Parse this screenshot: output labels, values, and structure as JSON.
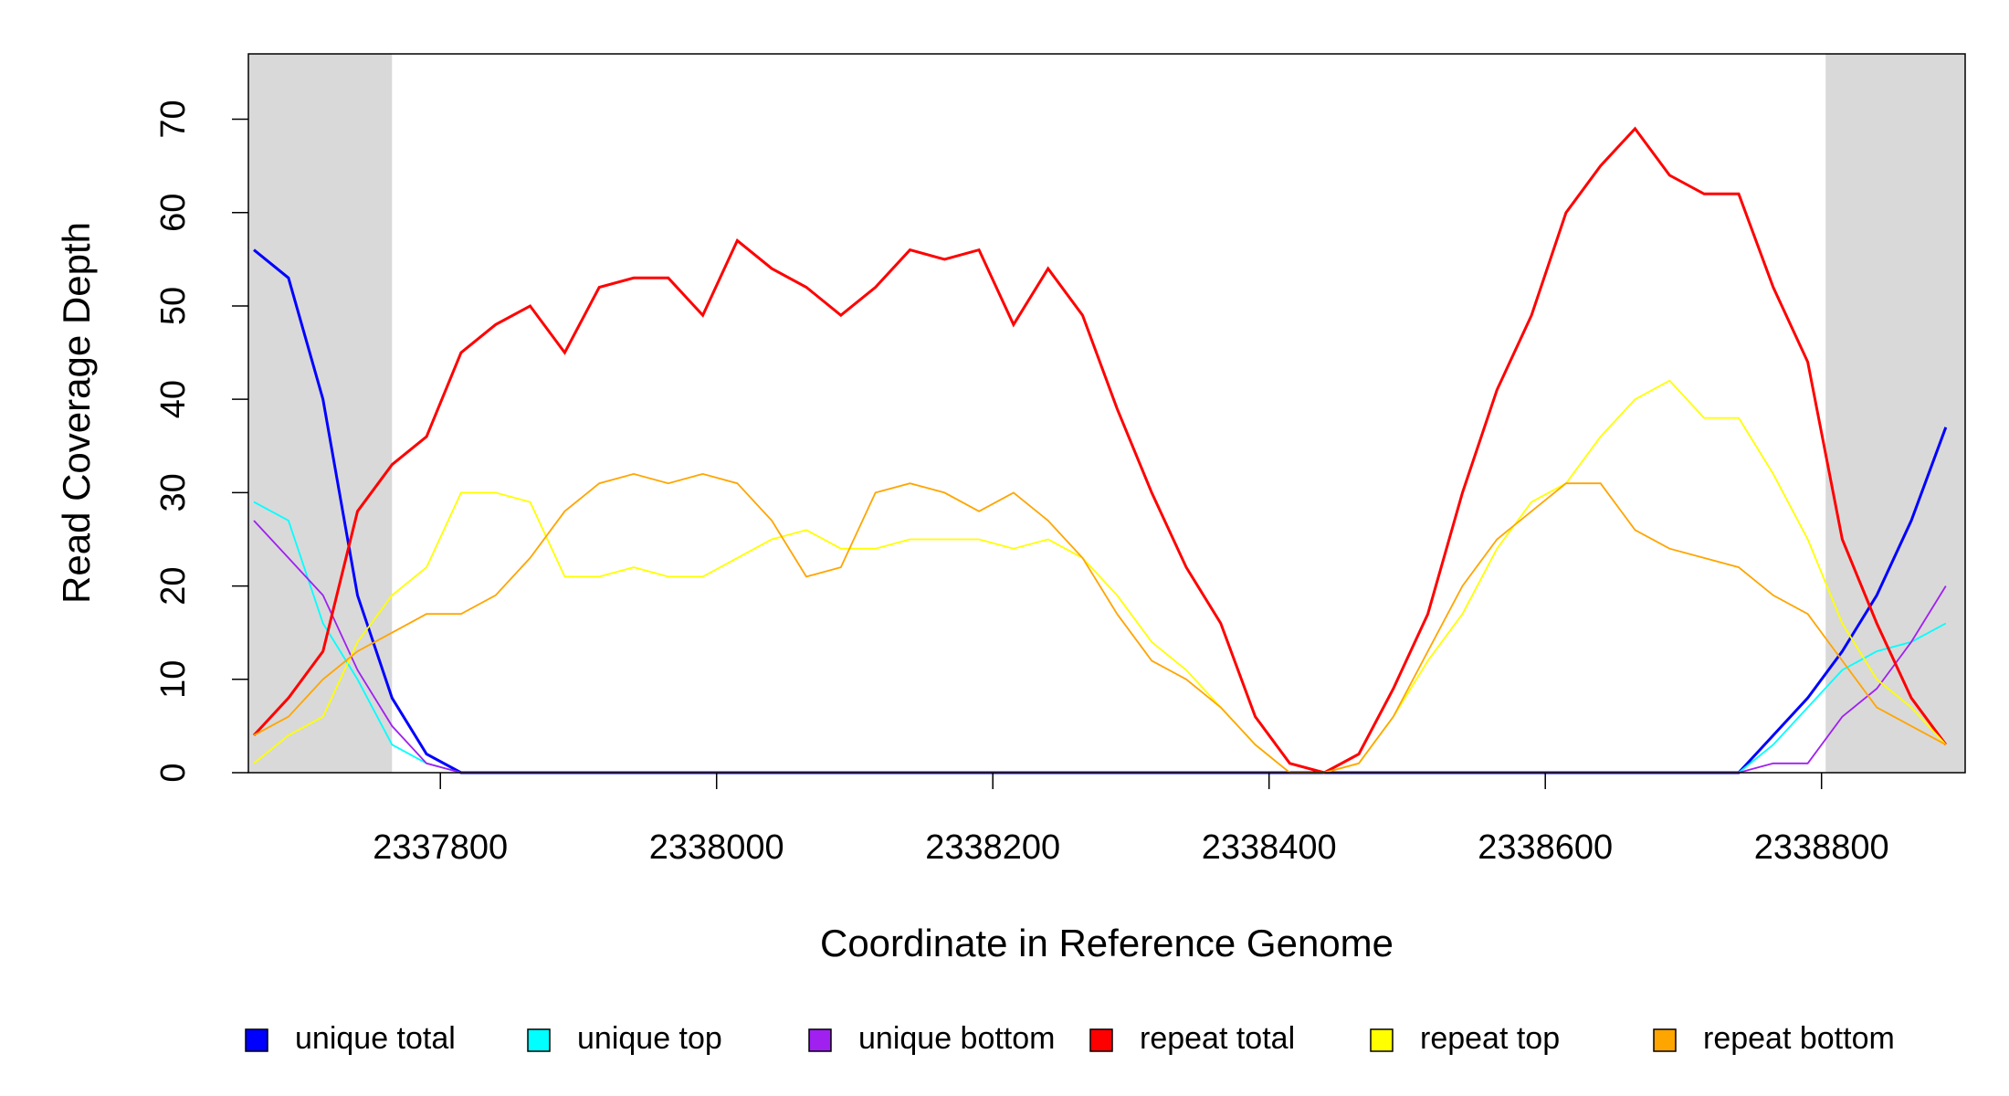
{
  "chart_data": {
    "type": "line",
    "xlabel": "Coordinate in Reference Genome",
    "ylabel": "Read Coverage Depth",
    "x": [
      2337665,
      2337690,
      2337715,
      2337740,
      2337765,
      2337790,
      2337815,
      2337840,
      2337865,
      2337890,
      2337915,
      2337940,
      2337965,
      2337990,
      2338015,
      2338040,
      2338065,
      2338090,
      2338115,
      2338140,
      2338165,
      2338190,
      2338215,
      2338240,
      2338265,
      2338290,
      2338315,
      2338340,
      2338365,
      2338390,
      2338415,
      2338440,
      2338465,
      2338490,
      2338515,
      2338540,
      2338565,
      2338590,
      2338615,
      2338640,
      2338665,
      2338690,
      2338715,
      2338740,
      2338765,
      2338790,
      2338815,
      2338840,
      2338865,
      2338890
    ],
    "series": [
      {
        "name": "unique total",
        "color": "#0000ff",
        "values": [
          56,
          53,
          40,
          19,
          8,
          2,
          0,
          0,
          0,
          0,
          0,
          0,
          0,
          0,
          0,
          0,
          0,
          0,
          0,
          0,
          0,
          0,
          0,
          0,
          0,
          0,
          0,
          0,
          0,
          0,
          0,
          0,
          0,
          0,
          0,
          0,
          0,
          0,
          0,
          0,
          0,
          0,
          0,
          0,
          4,
          8,
          13,
          19,
          27,
          37
        ]
      },
      {
        "name": "unique top",
        "color": "#00ffff",
        "values": [
          29,
          27,
          16,
          10,
          3,
          1,
          0,
          0,
          0,
          0,
          0,
          0,
          0,
          0,
          0,
          0,
          0,
          0,
          0,
          0,
          0,
          0,
          0,
          0,
          0,
          0,
          0,
          0,
          0,
          0,
          0,
          0,
          0,
          0,
          0,
          0,
          0,
          0,
          0,
          0,
          0,
          0,
          0,
          0,
          3,
          7,
          11,
          13,
          14,
          16
        ]
      },
      {
        "name": "unique bottom",
        "color": "#a020f0",
        "values": [
          27,
          23,
          19,
          11,
          5,
          1,
          0,
          0,
          0,
          0,
          0,
          0,
          0,
          0,
          0,
          0,
          0,
          0,
          0,
          0,
          0,
          0,
          0,
          0,
          0,
          0,
          0,
          0,
          0,
          0,
          0,
          0,
          0,
          0,
          0,
          0,
          0,
          0,
          0,
          0,
          0,
          0,
          0,
          0,
          1,
          1,
          6,
          9,
          14,
          20
        ]
      },
      {
        "name": "repeat total",
        "color": "#ff0000",
        "values": [
          4,
          8,
          13,
          28,
          33,
          36,
          45,
          48,
          50,
          45,
          52,
          53,
          53,
          49,
          57,
          54,
          52,
          49,
          52,
          56,
          55,
          56,
          48,
          54,
          49,
          39,
          30,
          22,
          16,
          6,
          1,
          0,
          2,
          9,
          17,
          30,
          41,
          49,
          60,
          65,
          69,
          64,
          62,
          62,
          52,
          44,
          25,
          16,
          8,
          3
        ]
      },
      {
        "name": "repeat top",
        "color": "#ffff00",
        "values": [
          1,
          4,
          6,
          14,
          19,
          22,
          30,
          30,
          29,
          21,
          21,
          22,
          21,
          21,
          23,
          25,
          26,
          24,
          24,
          25,
          25,
          25,
          24,
          25,
          23,
          19,
          14,
          11,
          7,
          3,
          0,
          0,
          1,
          6,
          12,
          17,
          24,
          29,
          31,
          36,
          40,
          42,
          38,
          38,
          32,
          25,
          16,
          10,
          7,
          3
        ]
      },
      {
        "name": "repeat bottom",
        "color": "#ffa500",
        "values": [
          4,
          6,
          10,
          13,
          15,
          17,
          17,
          19,
          23,
          28,
          31,
          32,
          31,
          32,
          31,
          27,
          21,
          22,
          30,
          31,
          30,
          28,
          30,
          27,
          23,
          17,
          12,
          10,
          7,
          3,
          0,
          0,
          1,
          6,
          13,
          20,
          25,
          28,
          31,
          31,
          26,
          24,
          23,
          22,
          19,
          17,
          12,
          7,
          5,
          3
        ]
      }
    ],
    "shaded": [
      [
        2337661,
        2337765
      ],
      [
        2338803,
        2338904
      ]
    ],
    "shade_color": "#d9d9d9",
    "xlim": [
      2337661,
      2338904
    ],
    "ylim": [
      0,
      77
    ],
    "xticks": [
      2337800,
      2338000,
      2338200,
      2338400,
      2338600,
      2338800
    ],
    "yticks": [
      0,
      10,
      20,
      30,
      40,
      50,
      60,
      70
    ],
    "legend": "bottom"
  }
}
